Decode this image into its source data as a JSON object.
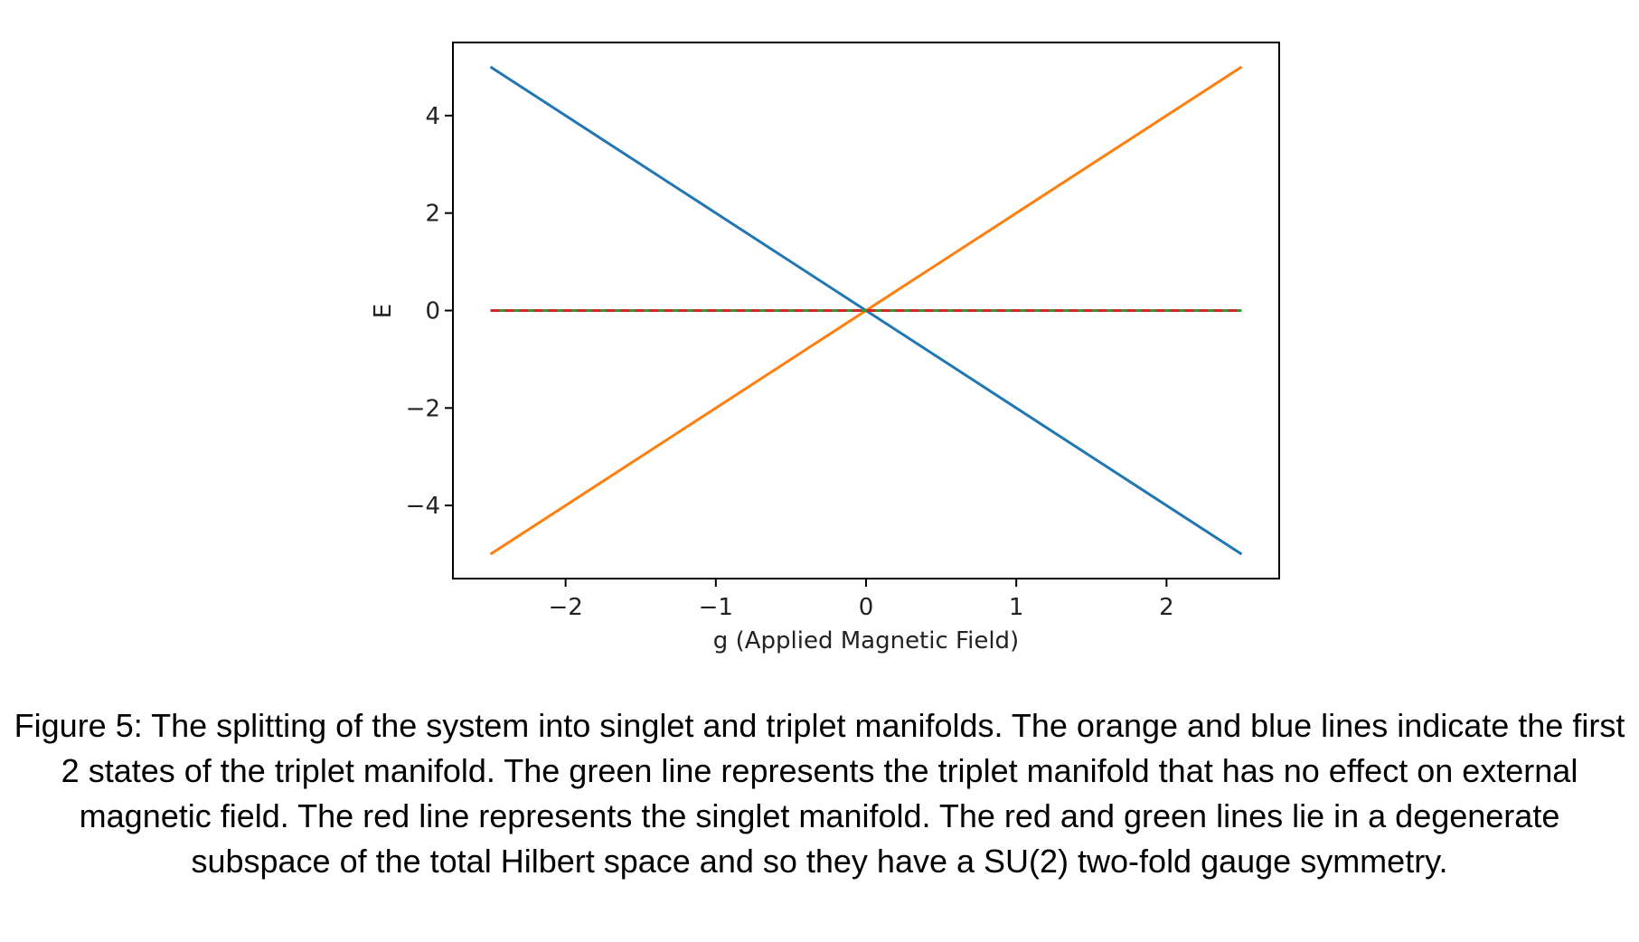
{
  "chart_data": {
    "type": "line",
    "title": "",
    "xlabel": "g (Applied Magnetic Field)",
    "ylabel": "E",
    "xlim": [
      -2.75,
      2.75
    ],
    "ylim": [
      -5.5,
      5.5
    ],
    "xticks": [
      -2,
      -1,
      0,
      1,
      2
    ],
    "yticks": [
      -4,
      -2,
      0,
      2,
      4
    ],
    "xtick_labels": [
      "−2",
      "−1",
      "0",
      "1",
      "2"
    ],
    "ytick_labels": [
      "−4",
      "−2",
      "0",
      "2",
      "4"
    ],
    "grid": false,
    "legend": "none",
    "x": [
      -2.5,
      2.5
    ],
    "series": [
      {
        "values": [
          5,
          -5
        ],
        "color": "#1f77b4",
        "style": "solid"
      },
      {
        "values": [
          -5,
          5
        ],
        "color": "#ff7f0e",
        "style": "solid"
      },
      {
        "values": [
          0,
          0
        ],
        "color": "#2ca02c",
        "style": "solid"
      },
      {
        "values": [
          0,
          0
        ],
        "color": "#d62728",
        "style": "dashed"
      }
    ]
  },
  "caption": "Figure 5: The splitting of the system into singlet and triplet manifolds. The orange and blue lines indicate the first 2 states of the triplet manifold. The green line represents the triplet manifold that has no effect on external magnetic field. The red line represents the singlet manifold. The red and green lines lie in a degenerate subspace of the total Hilbert space and so they have a SU(2) two-fold gauge symmetry."
}
